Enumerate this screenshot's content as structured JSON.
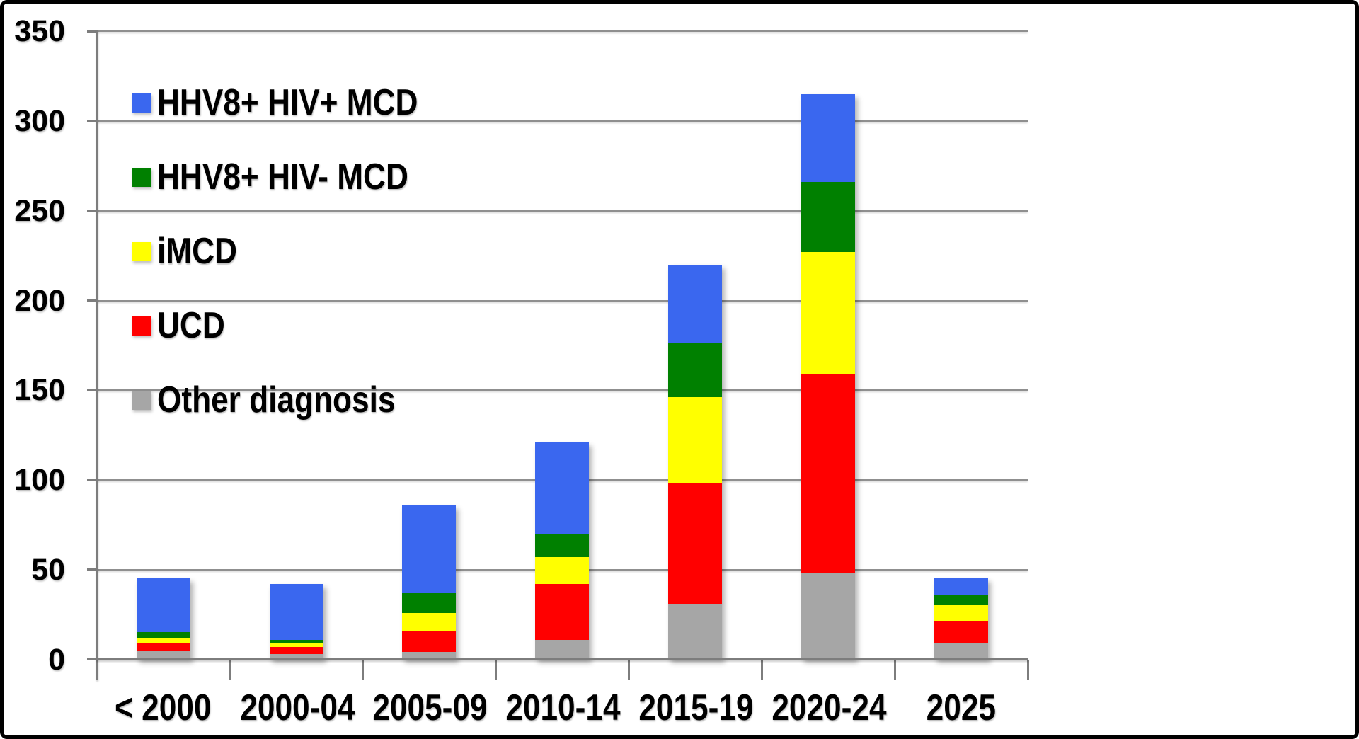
{
  "chart_data": {
    "type": "bar",
    "stacked": true,
    "title": "",
    "categories": [
      "< 2000",
      "2000-04",
      "2005-09",
      "2010-14",
      "2015-19",
      "2020-24",
      "2025"
    ],
    "series": [
      {
        "name": "Other diagnosis",
        "color": "#A6A6A6",
        "values": [
          5,
          3,
          4,
          11,
          31,
          48,
          9
        ]
      },
      {
        "name": "UCD",
        "color": "#FF0000",
        "values": [
          4,
          4,
          12,
          31,
          67,
          111,
          12
        ]
      },
      {
        "name": "iMCD",
        "color": "#FFFF00",
        "values": [
          3,
          2,
          10,
          15,
          48,
          68,
          9
        ]
      },
      {
        "name": "HHV8+ HIV- MCD",
        "color": "#008000",
        "values": [
          3,
          2,
          11,
          13,
          30,
          39,
          6
        ]
      },
      {
        "name": "HHV8+ HIV+ MCD",
        "color": "#3A67EF",
        "values": [
          30,
          31,
          49,
          51,
          44,
          49,
          9
        ]
      }
    ],
    "totals": [
      45,
      42,
      86,
      121,
      220,
      315,
      45
    ],
    "ylim": [
      0,
      350
    ],
    "ytick_step": 50,
    "yticks": [
      "0",
      "50",
      "100",
      "150",
      "200",
      "250",
      "300",
      "350"
    ],
    "grid": true,
    "legend_position": "upper-left-inside",
    "legend_items": [
      {
        "label": "HHV8+ HIV+ MCD",
        "color": "#3A67EF"
      },
      {
        "label": "HHV8+ HIV- MCD",
        "color": "#008000"
      },
      {
        "label": "iMCD",
        "color": "#FFFF00"
      },
      {
        "label": "UCD",
        "color": "#FF0000"
      },
      {
        "label": "Other diagnosis",
        "color": "#A6A6A6"
      }
    ],
    "colors": {
      "gridline": "#8f8f8f",
      "axis": "#7d7d7d",
      "background": "#ffffff",
      "frame_border": "#000000",
      "text": "#000000"
    }
  }
}
